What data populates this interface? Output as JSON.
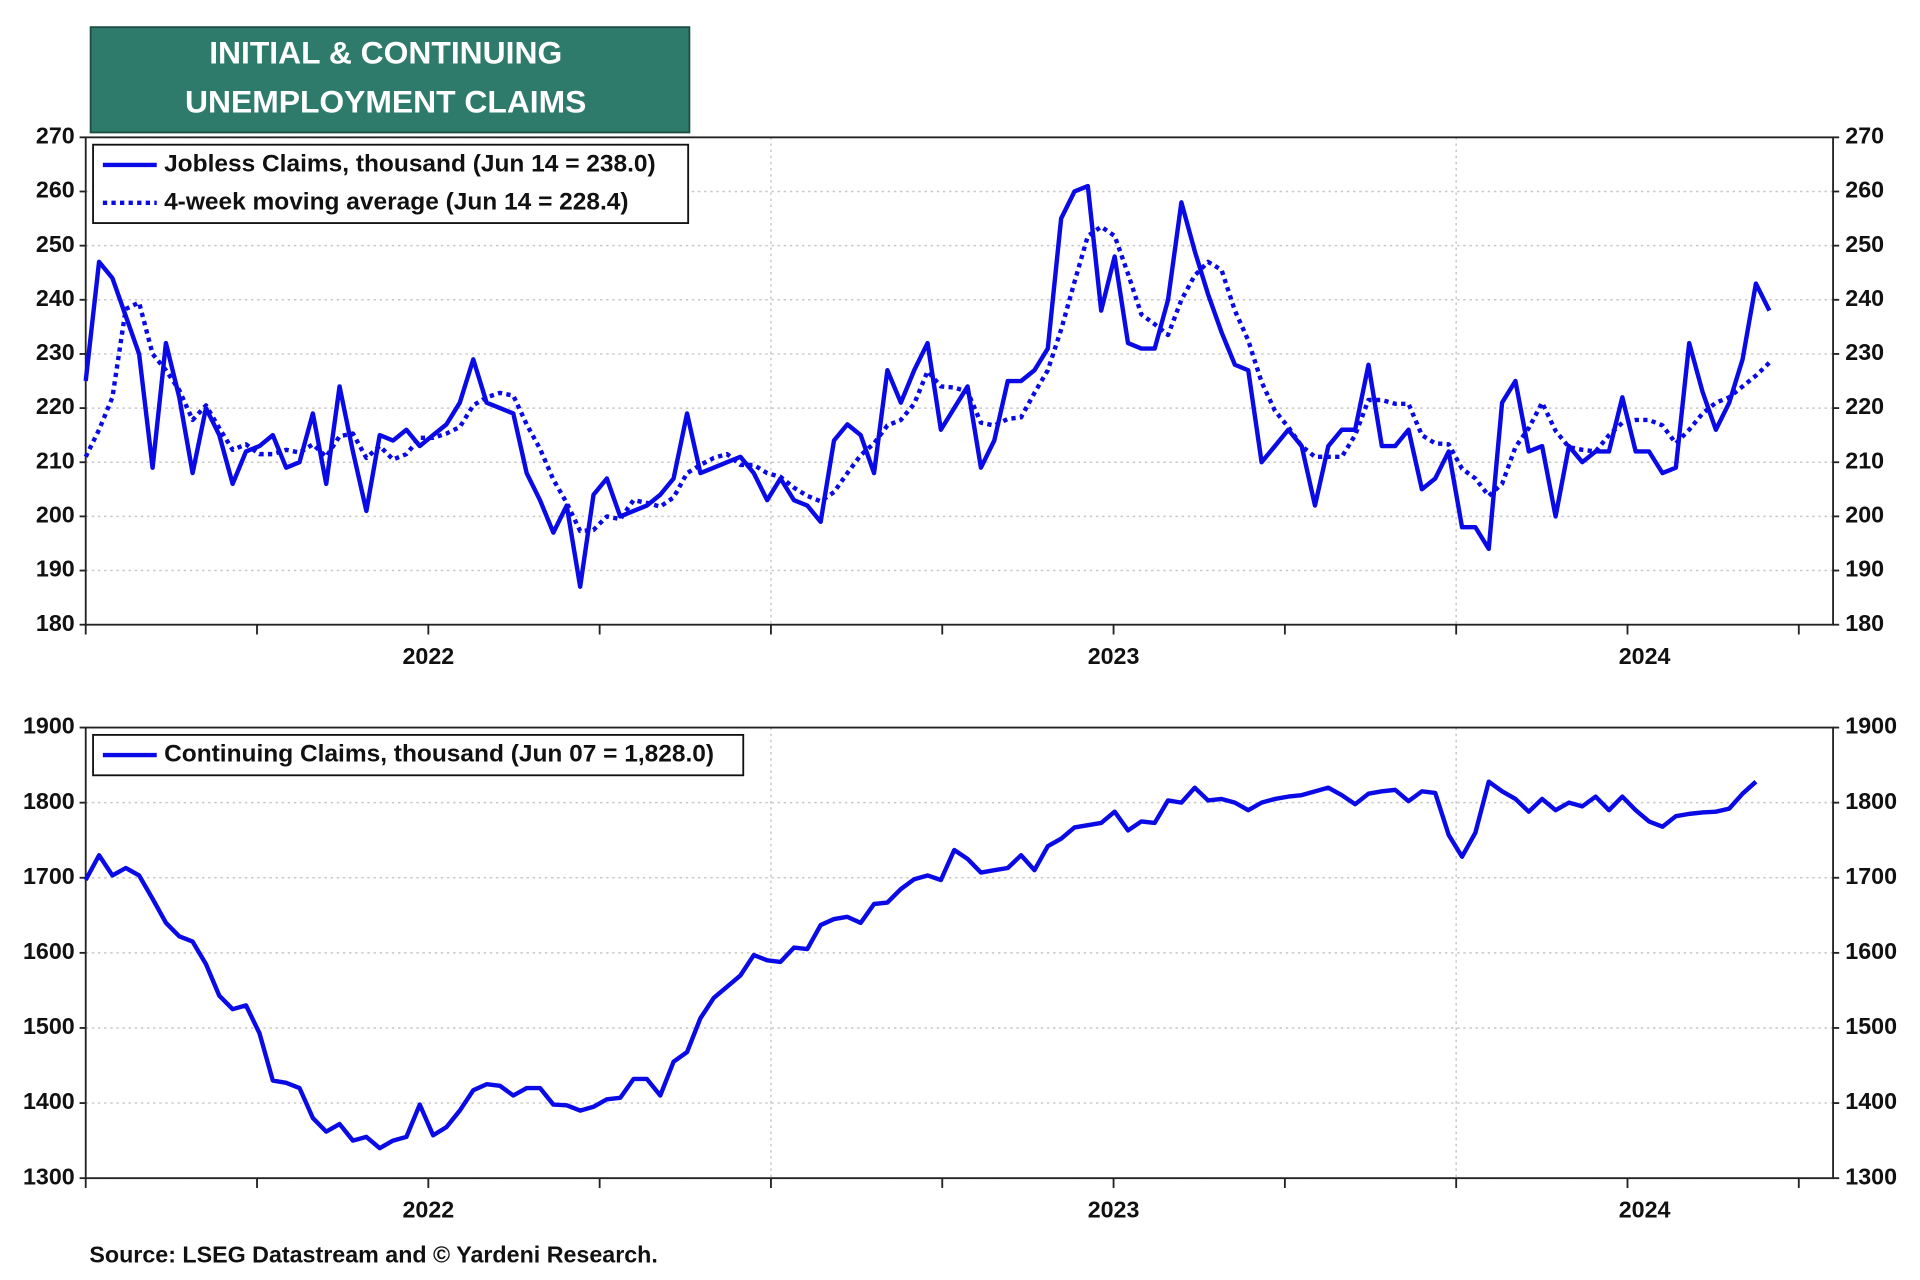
{
  "title": [
    "INITIAL & CONTINUING",
    "UNEMPLOYMENT CLAIMS"
  ],
  "source": "Source: LSEG Datastream and © Yardeni Research.",
  "chart_data": [
    {
      "type": "line",
      "x": [
        2022,
        2022.0195,
        2022.039,
        2022.0585,
        2022.078,
        2022.0975,
        2022.117,
        2022.1365,
        2022.156,
        2022.1755,
        2022.195,
        2022.2145,
        2022.234,
        2022.2535,
        2022.273,
        2022.2925,
        2022.312,
        2022.3315,
        2022.351,
        2022.3705,
        2022.39,
        2022.4095,
        2022.429,
        2022.4485,
        2022.468,
        2022.4875,
        2022.507,
        2022.5265,
        2022.546,
        2022.5655,
        2022.585,
        2022.6045,
        2022.624,
        2022.6435,
        2022.663,
        2022.6825,
        2022.702,
        2022.7215,
        2022.741,
        2022.7605,
        2022.78,
        2022.7995,
        2022.819,
        2022.8385,
        2022.858,
        2022.8775,
        2022.897,
        2022.9165,
        2022.936,
        2022.9555,
        2022.975,
        2022.9945,
        2023.014,
        2023.0335,
        2023.053,
        2023.0725,
        2023.092,
        2023.1115,
        2023.131,
        2023.1505,
        2023.17,
        2023.1895,
        2023.209,
        2023.2285,
        2023.248,
        2023.2675,
        2023.287,
        2023.3065,
        2023.326,
        2023.3455,
        2023.365,
        2023.3845,
        2023.404,
        2023.4235,
        2023.443,
        2023.4625,
        2023.482,
        2023.5015,
        2023.521,
        2023.5405,
        2023.56,
        2023.5795,
        2023.599,
        2023.6185,
        2023.638,
        2023.6575,
        2023.677,
        2023.6965,
        2023.716,
        2023.7355,
        2023.755,
        2023.7745,
        2023.794,
        2023.8135,
        2023.833,
        2023.8525,
        2023.872,
        2023.8915,
        2023.911,
        2023.9305,
        2023.95,
        2023.9695,
        2023.989,
        2024.0085,
        2024.028,
        2024.0475,
        2024.067,
        2024.0865,
        2024.106,
        2024.1255,
        2024.145,
        2024.1645,
        2024.184,
        2024.2035,
        2024.223,
        2024.2425,
        2024.262,
        2024.2815,
        2024.301,
        2024.3205,
        2024.34,
        2024.3595,
        2024.379,
        2024.3985,
        2024.418,
        2024.4375,
        2024.457
      ],
      "series": [
        {
          "name": "Jobless Claims, thousand (Jun 14 = 238.0)",
          "color": "#0a0ae6",
          "style": "solid",
          "values": [
            225,
            247,
            244,
            237,
            230,
            209,
            232,
            222,
            208,
            220,
            215,
            206,
            212,
            213,
            215,
            209,
            210,
            219,
            206,
            224,
            212,
            201,
            215,
            214,
            216,
            213,
            215,
            217,
            221,
            229,
            221,
            220,
            219,
            208,
            203,
            197,
            202,
            187,
            204,
            207,
            200,
            201,
            202,
            204,
            207,
            219,
            208,
            209,
            210,
            211,
            208,
            203,
            207,
            203,
            202,
            199,
            214,
            217,
            215,
            208,
            227,
            221,
            227,
            232,
            216,
            220,
            224,
            209,
            214,
            225,
            225,
            227,
            231,
            255,
            260,
            261,
            238,
            248,
            232,
            231,
            231,
            240,
            258,
            249,
            241,
            234,
            228,
            227,
            210,
            213,
            216,
            213,
            202,
            213,
            216,
            216,
            228,
            213,
            213,
            216,
            205,
            207,
            212,
            198,
            198,
            194,
            221,
            225,
            212,
            213,
            200,
            213,
            210,
            212,
            212,
            222,
            212,
            212,
            208,
            209,
            232,
            223,
            216,
            221,
            229,
            243,
            238
          ]
        },
        {
          "name": "4-week moving average (Jun 14 = 228.4)",
          "color": "#0a0ae6",
          "style": "dotted",
          "values": [
            211,
            216,
            222,
            238.3,
            239.5,
            230,
            227,
            223.3,
            217.8,
            220.5,
            216.3,
            212.3,
            213.3,
            211.5,
            211.5,
            212.3,
            211.8,
            213.3,
            211,
            214.8,
            215.3,
            210.8,
            213,
            210.5,
            211.5,
            214.5,
            214.5,
            215.3,
            216.5,
            220.5,
            222,
            222.8,
            222.3,
            217,
            212.5,
            206.8,
            202.5,
            197.3,
            197.5,
            200,
            199.5,
            203,
            202.5,
            201.8,
            203.5,
            208,
            209.5,
            210.8,
            211.5,
            209.5,
            209.5,
            208,
            207.3,
            205.3,
            203.8,
            202.8,
            204.5,
            208,
            211.3,
            213.5,
            216.8,
            217.8,
            220.8,
            226.8,
            224,
            223.8,
            223,
            217.3,
            216.8,
            218,
            218.3,
            222.8,
            227,
            234.5,
            243.3,
            251.8,
            253.5,
            251.8,
            244.8,
            237.3,
            235.5,
            233.5,
            240,
            244.5,
            247,
            245.5,
            238,
            232.5,
            224.8,
            219.5,
            216.5,
            213,
            211,
            211,
            211,
            215,
            221.5,
            221.5,
            220.8,
            220.8,
            215,
            213.5,
            213.3,
            208.8,
            207,
            203.8,
            206,
            212.8,
            216.3,
            221,
            215.8,
            212.8,
            212.3,
            212,
            215,
            217.3,
            217.8,
            217.8,
            216.8,
            213.5,
            216,
            219,
            221,
            222,
            224,
            226,
            228.4
          ]
        }
      ],
      "xlim": [
        2022,
        2024.55
      ],
      "xticks": [
        2022,
        2022.25,
        2022.5,
        2022.75,
        2023,
        2023.25,
        2023.5,
        2023.75,
        2024,
        2024.25,
        2024.5
      ],
      "year_labels": [
        "2022",
        "2023",
        "2024"
      ],
      "ylim": [
        180,
        270
      ],
      "yticks": [
        180,
        190,
        200,
        210,
        220,
        230,
        240,
        250,
        260,
        270
      ],
      "grid": true,
      "legend": "upper left"
    },
    {
      "type": "line",
      "x": [
        2022,
        2022.0195,
        2022.039,
        2022.0585,
        2022.078,
        2022.0975,
        2022.117,
        2022.1365,
        2022.156,
        2022.1755,
        2022.195,
        2022.2145,
        2022.234,
        2022.2535,
        2022.273,
        2022.2925,
        2022.312,
        2022.3315,
        2022.351,
        2022.3705,
        2022.39,
        2022.4095,
        2022.429,
        2022.4485,
        2022.468,
        2022.4875,
        2022.507,
        2022.5265,
        2022.546,
        2022.5655,
        2022.585,
        2022.6045,
        2022.624,
        2022.6435,
        2022.663,
        2022.6825,
        2022.702,
        2022.7215,
        2022.741,
        2022.7605,
        2022.78,
        2022.7995,
        2022.819,
        2022.8385,
        2022.858,
        2022.8775,
        2022.897,
        2022.9165,
        2022.936,
        2022.9555,
        2022.975,
        2022.9945,
        2023.014,
        2023.0335,
        2023.053,
        2023.0725,
        2023.092,
        2023.1115,
        2023.131,
        2023.1505,
        2023.17,
        2023.1895,
        2023.209,
        2023.2285,
        2023.248,
        2023.2675,
        2023.287,
        2023.3065,
        2023.326,
        2023.3455,
        2023.365,
        2023.3845,
        2023.404,
        2023.4235,
        2023.443,
        2023.4625,
        2023.482,
        2023.5015,
        2023.521,
        2023.5405,
        2023.56,
        2023.5795,
        2023.599,
        2023.6185,
        2023.638,
        2023.6575,
        2023.677,
        2023.6965,
        2023.716,
        2023.7355,
        2023.755,
        2023.7745,
        2023.794,
        2023.8135,
        2023.833,
        2023.8525,
        2023.872,
        2023.8915,
        2023.911,
        2023.9305,
        2023.95,
        2023.9695,
        2023.989,
        2024.0085,
        2024.028,
        2024.0475,
        2024.067,
        2024.0865,
        2024.106,
        2024.1255,
        2024.145,
        2024.1645,
        2024.184,
        2024.2035,
        2024.223,
        2024.2425,
        2024.262,
        2024.2815,
        2024.301,
        2024.3205,
        2024.34,
        2024.3595,
        2024.379,
        2024.3985,
        2024.418,
        2024.4375
      ],
      "series": [
        {
          "name": "Continuing Claims, thousand (Jun 07 = 1,828.0)",
          "color": "#0a0ae6",
          "style": "solid",
          "values": [
            1697,
            1730,
            1703,
            1713,
            1703,
            1672,
            1640,
            1622,
            1615,
            1585,
            1543,
            1525,
            1530,
            1493,
            1430,
            1427,
            1420,
            1380,
            1362,
            1372,
            1350,
            1355,
            1340,
            1350,
            1355,
            1398,
            1357,
            1368,
            1390,
            1417,
            1425,
            1423,
            1410,
            1420,
            1420,
            1398,
            1397,
            1390,
            1395,
            1405,
            1407,
            1432,
            1432,
            1410,
            1455,
            1468,
            1513,
            1540,
            1555,
            1570,
            1597,
            1590,
            1588,
            1607,
            1605,
            1637,
            1645,
            1648,
            1640,
            1665,
            1667,
            1685,
            1698,
            1703,
            1697,
            1737,
            1725,
            1707,
            1710,
            1713,
            1730,
            1710,
            1742,
            1752,
            1767,
            1770,
            1773,
            1788,
            1763,
            1775,
            1773,
            1803,
            1800,
            1820,
            1803,
            1805,
            1800,
            1790,
            1800,
            1805,
            1808,
            1810,
            1815,
            1820,
            1810,
            1798,
            1812,
            1815,
            1817,
            1802,
            1815,
            1813,
            1757,
            1728,
            1760,
            1828,
            1815,
            1805,
            1788,
            1805,
            1790,
            1800,
            1795,
            1808,
            1790,
            1808,
            1790,
            1775,
            1768,
            1782,
            1785,
            1787,
            1788,
            1792,
            1812,
            1828
          ]
        }
      ],
      "xlim": [
        2022,
        2024.55
      ],
      "xticks": [
        2022,
        2022.25,
        2022.5,
        2022.75,
        2023,
        2023.25,
        2023.5,
        2023.75,
        2024,
        2024.25,
        2024.5
      ],
      "year_labels": [
        "2022",
        "2023",
        "2024"
      ],
      "ylim": [
        1300,
        1900
      ],
      "yticks": [
        1300,
        1400,
        1500,
        1600,
        1700,
        1800,
        1900
      ],
      "grid": true,
      "legend": "upper left"
    }
  ]
}
